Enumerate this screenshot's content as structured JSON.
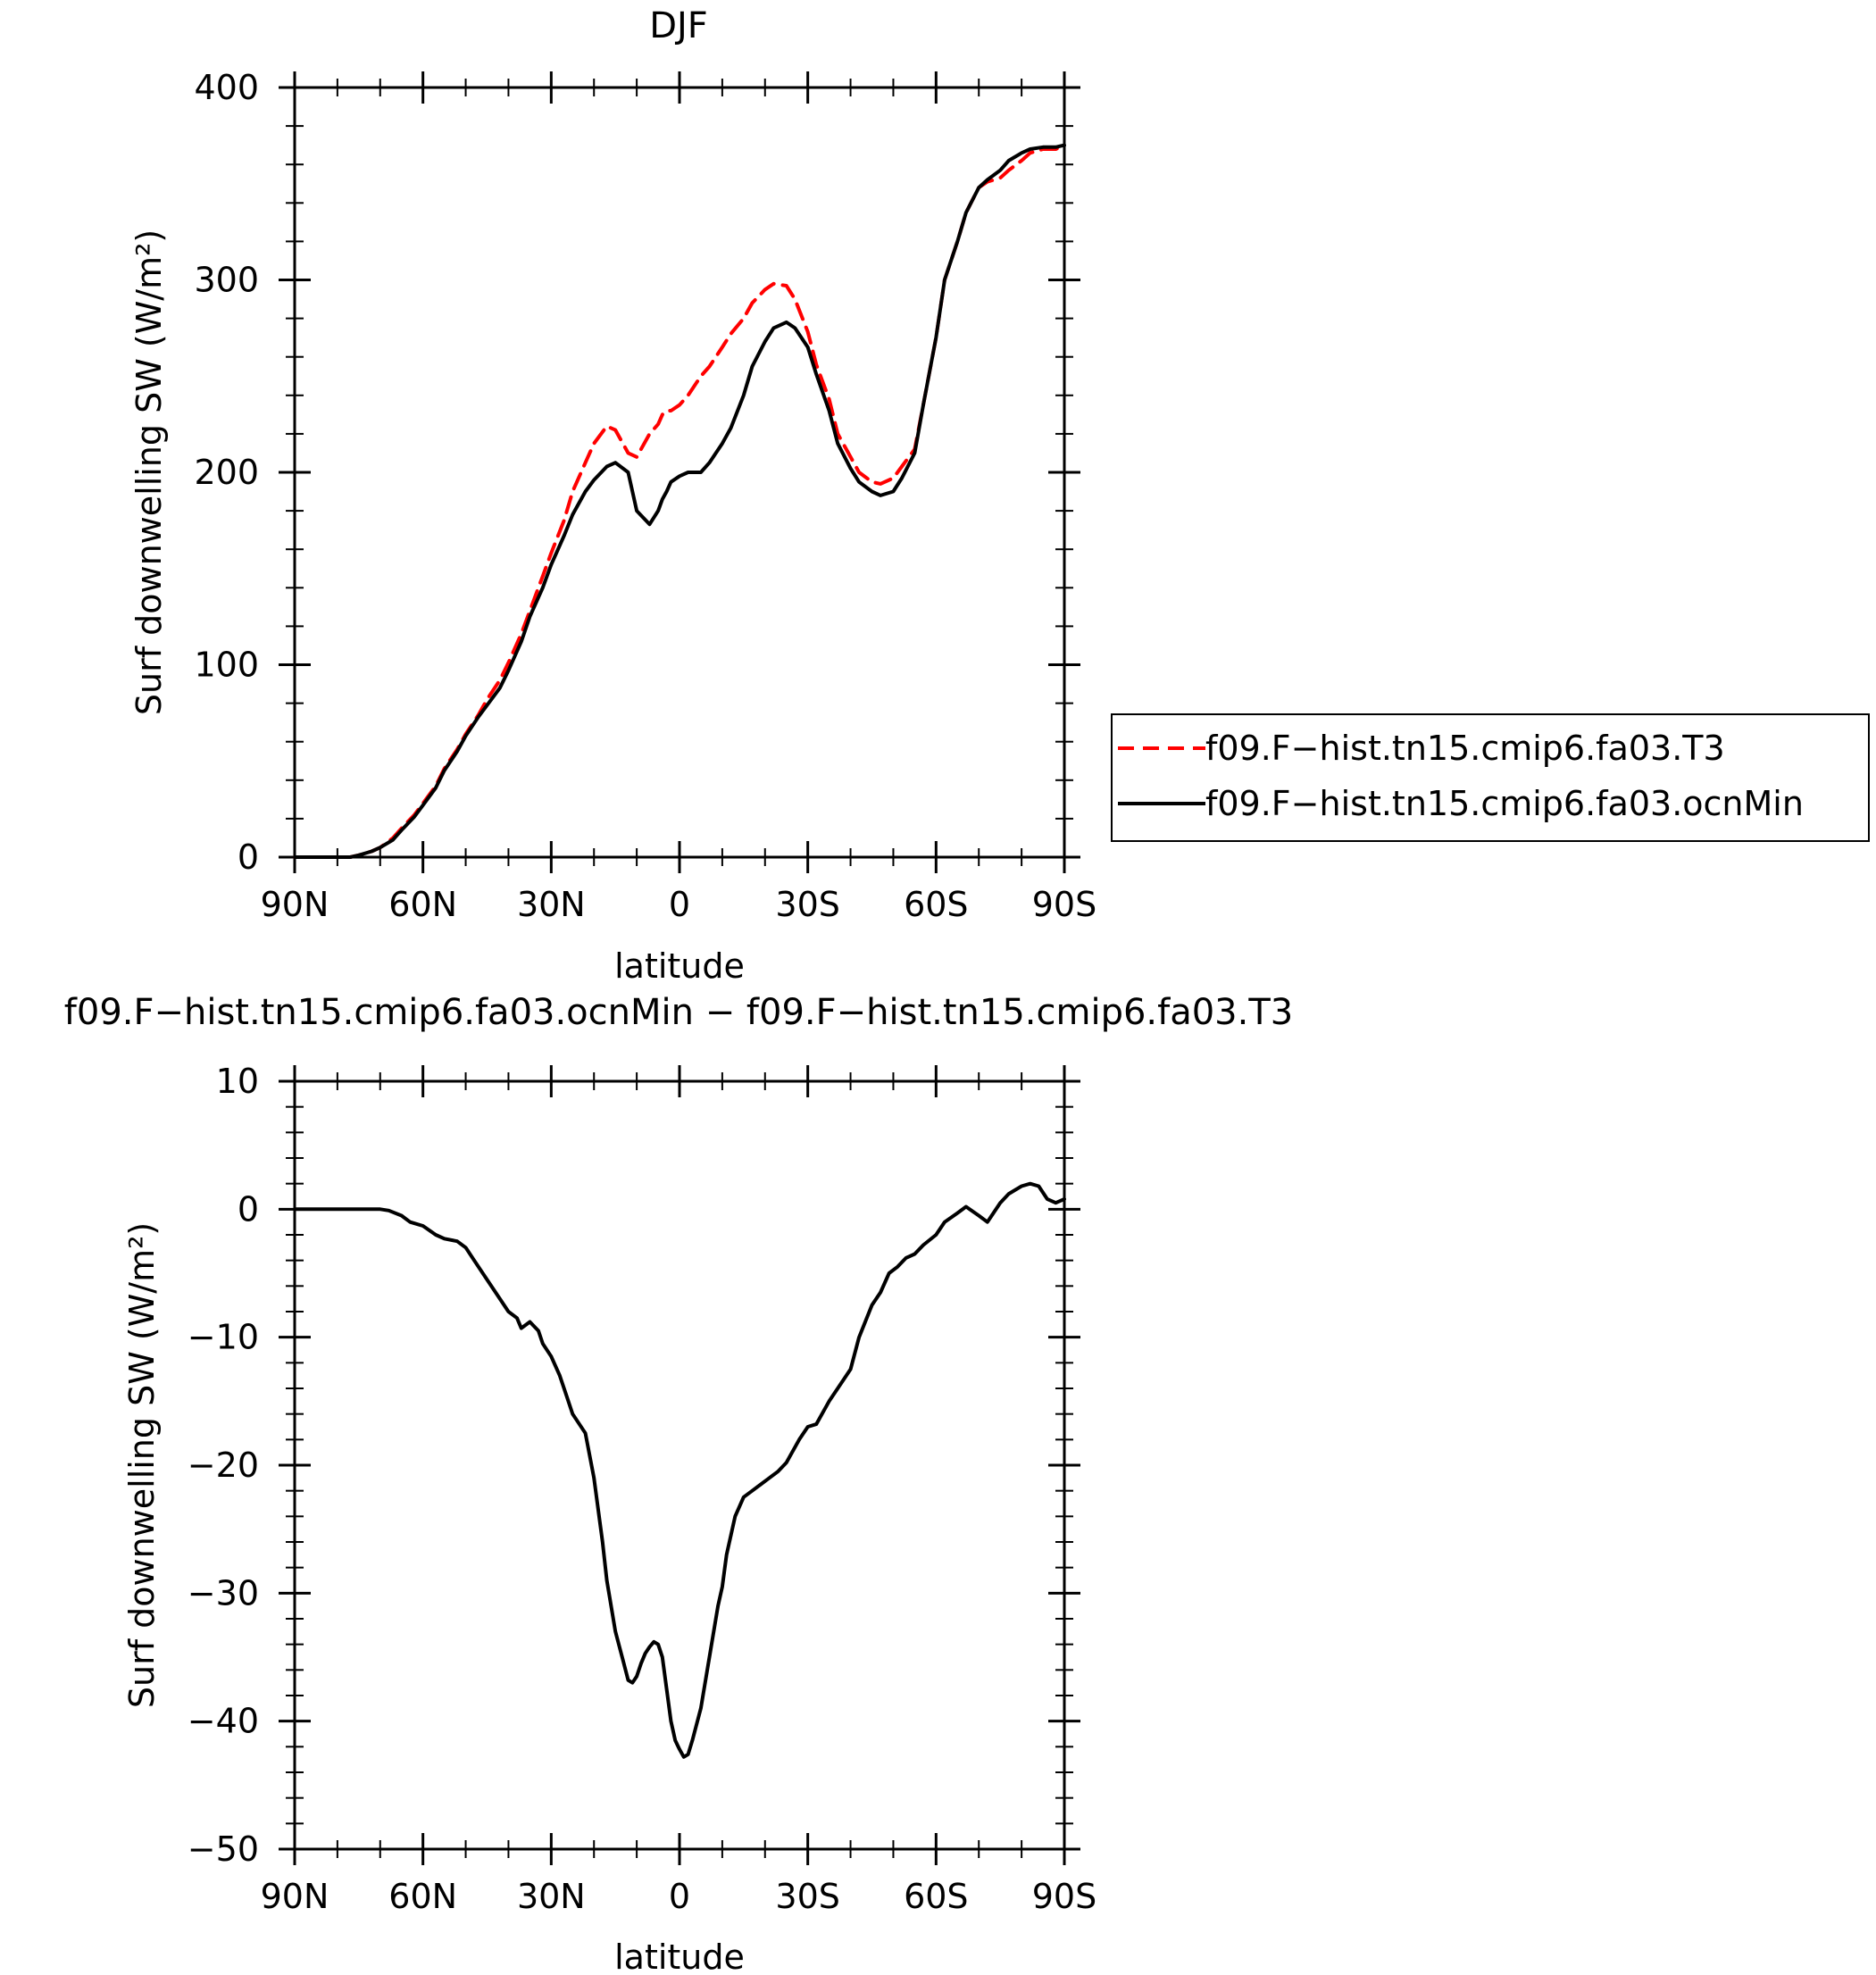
{
  "chart_data": [
    {
      "type": "line",
      "title": "DJF",
      "xlabel": "latitude",
      "ylabel": "Surf downwelling SW (W/m²)",
      "xlim": [
        90,
        -90
      ],
      "ylim": [
        0,
        400
      ],
      "x_tick_values": [
        90,
        60,
        30,
        0,
        -30,
        -60,
        -90
      ],
      "x_tick_labels": [
        "90N",
        "60N",
        "30N",
        "0",
        "30S",
        "60S",
        "90S"
      ],
      "y_tick_values": [
        0,
        100,
        200,
        300,
        400
      ],
      "y_tick_labels": [
        "0",
        "100",
        "200",
        "300",
        "400"
      ],
      "grid": false,
      "legend_position": "right",
      "x": [
        90,
        85,
        80,
        77,
        75,
        72,
        70,
        67,
        65,
        62,
        60,
        57,
        55,
        52,
        50,
        47,
        45,
        42,
        40,
        37,
        35,
        32,
        30,
        27,
        25,
        22,
        20,
        17,
        15,
        12,
        10,
        7,
        5,
        4,
        3,
        2,
        0,
        -2,
        -5,
        -7,
        -10,
        -12,
        -15,
        -17,
        -20,
        -22,
        -25,
        -27,
        -30,
        -32,
        -35,
        -37,
        -40,
        -42,
        -45,
        -47,
        -50,
        -52,
        -55,
        -57,
        -60,
        -62,
        -65,
        -67,
        -70,
        -72,
        -75,
        -77,
        -80,
        -82,
        -85,
        -87,
        -88,
        -90
      ],
      "series": [
        {
          "name": "f09.F−hist.tn15.cmip6.fa03.T3",
          "color": "#ff0000",
          "dash": "dashed",
          "values": [
            0,
            0,
            0,
            0,
            1,
            3,
            5,
            10,
            15,
            22,
            28,
            37,
            46,
            56,
            64,
            74,
            82,
            92,
            101,
            116,
            128,
            146,
            158,
            175,
            190,
            205,
            215,
            224,
            222,
            210,
            208,
            220,
            225,
            230,
            232,
            232,
            235,
            240,
            250,
            255,
            265,
            272,
            280,
            288,
            295,
            298,
            297,
            290,
            273,
            256,
            238,
            220,
            208,
            200,
            195,
            194,
            197,
            203,
            212,
            235,
            270,
            300,
            320,
            335,
            348,
            351,
            353,
            357,
            362,
            366,
            368,
            368,
            368,
            370
          ]
        },
        {
          "name": "f09.F−hist.tn15.cmip6.fa03.ocnMin",
          "color": "#000000",
          "dash": "solid",
          "values": [
            0,
            0,
            0,
            0,
            1,
            3,
            5,
            9,
            14,
            21,
            27,
            36,
            45,
            55,
            63,
            73,
            79,
            88,
            97,
            112,
            125,
            140,
            152,
            167,
            178,
            190,
            196,
            203,
            205,
            200,
            180,
            173,
            180,
            186,
            190,
            195,
            198,
            200,
            200,
            205,
            215,
            223,
            240,
            255,
            268,
            275,
            278,
            275,
            265,
            251,
            232,
            215,
            202,
            195,
            190,
            188,
            190,
            197,
            210,
            235,
            270,
            300,
            320,
            335,
            348,
            352,
            357,
            362,
            366,
            368,
            369,
            369,
            369,
            370
          ]
        }
      ]
    },
    {
      "type": "line",
      "title": "f09.F−hist.tn15.cmip6.fa03.ocnMin − f09.F−hist.tn15.cmip6.fa03.T3",
      "xlabel": "latitude",
      "ylabel": "Surf downwelling SW (W/m²)",
      "xlim": [
        90,
        -90
      ],
      "ylim": [
        -50,
        10
      ],
      "x_tick_values": [
        90,
        60,
        30,
        0,
        -30,
        -60,
        -90
      ],
      "x_tick_labels": [
        "90N",
        "60N",
        "30N",
        "0",
        "30S",
        "60S",
        "90S"
      ],
      "y_tick_values": [
        -50,
        -40,
        -30,
        -20,
        -10,
        0,
        10
      ],
      "y_tick_labels": [
        "−50",
        "−40",
        "−30",
        "−20",
        "−10",
        "0",
        "10"
      ],
      "grid": false,
      "series": [
        {
          "color": "#000000",
          "dash": "solid",
          "values_x": [
            90,
            85,
            80,
            75,
            70,
            68,
            65,
            63,
            60,
            57,
            55,
            52,
            50,
            48,
            45,
            42,
            40,
            38,
            37,
            35,
            33,
            32,
            30,
            28,
            27,
            25,
            22,
            20,
            18,
            17,
            15,
            13,
            12,
            11,
            10,
            9,
            8,
            7,
            6,
            5,
            4,
            3,
            2,
            1,
            0,
            -1,
            -2,
            -3,
            -5,
            -7,
            -9,
            -10,
            -11,
            -13,
            -15,
            -17,
            -19,
            -21,
            -23,
            -25,
            -28,
            -30,
            -32,
            -35,
            -37,
            -40,
            -42,
            -45,
            -47,
            -49,
            -51,
            -53,
            -55,
            -57,
            -60,
            -62,
            -65,
            -67,
            -70,
            -72,
            -75,
            -77,
            -80,
            -82,
            -84,
            -86,
            -88,
            -90
          ],
          "values": [
            0,
            0,
            0,
            0,
            0,
            -0.1,
            -0.5,
            -1.0,
            -1.3,
            -2.0,
            -2.3,
            -2.5,
            -3.0,
            -4.0,
            -5.5,
            -7.0,
            -8.0,
            -8.5,
            -9.3,
            -8.8,
            -9.5,
            -10.5,
            -11.5,
            -13.0,
            -14.0,
            -16.0,
            -17.5,
            -21.0,
            -26.0,
            -29.0,
            -33.0,
            -35.5,
            -36.8,
            -37.0,
            -36.5,
            -35.5,
            -34.7,
            -34.2,
            -33.8,
            -34.0,
            -35.0,
            -37.5,
            -40.0,
            -41.5,
            -42.2,
            -42.8,
            -42.6,
            -41.5,
            -39.0,
            -35.0,
            -31.0,
            -29.5,
            -27.0,
            -24.0,
            -22.5,
            -22.0,
            -21.5,
            -21.0,
            -20.5,
            -19.8,
            -18.0,
            -17.0,
            -16.8,
            -15.0,
            -14.0,
            -12.5,
            -10.0,
            -7.5,
            -6.5,
            -5.0,
            -4.5,
            -3.8,
            -3.5,
            -2.8,
            -2.0,
            -1.0,
            -0.3,
            0.2,
            -0.5,
            -1.0,
            0.5,
            1.2,
            1.8,
            2.0,
            1.8,
            0.8,
            0.5,
            0.8
          ]
        }
      ]
    }
  ]
}
